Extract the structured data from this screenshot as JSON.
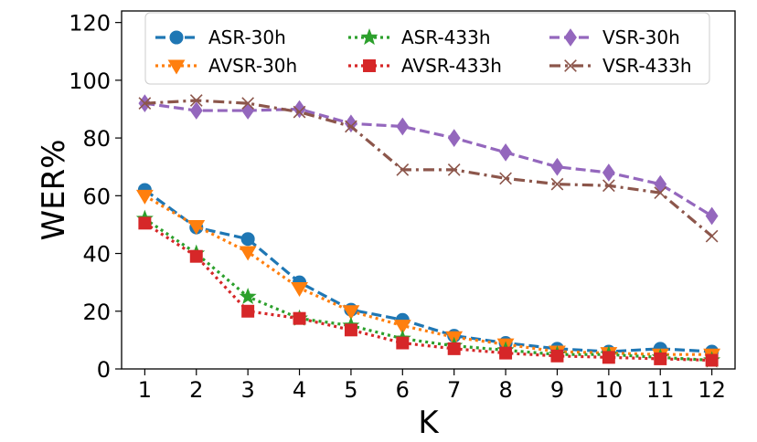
{
  "chart_data": {
    "type": "line",
    "xlabel": "K",
    "ylabel": "WER%",
    "x": [
      1,
      2,
      3,
      4,
      5,
      6,
      7,
      8,
      9,
      10,
      11,
      12
    ],
    "xlim": [
      0.55,
      12.45
    ],
    "ylim": [
      0,
      124
    ],
    "yticks": [
      0,
      20,
      40,
      60,
      80,
      100,
      120
    ],
    "grid": false,
    "legend_position": "top",
    "legend_columns": 3,
    "series": [
      {
        "name": "ASR-30h",
        "color": "#1f77b4",
        "marker": "circle",
        "linestyle": "dashed",
        "values": [
          62,
          49,
          45,
          30,
          20.5,
          17,
          11.5,
          9,
          7,
          6,
          7,
          6
        ]
      },
      {
        "name": "AVSR-30h",
        "color": "#ff7f0e",
        "marker": "triangle-down",
        "linestyle": "dotted",
        "values": [
          60,
          49.5,
          40.5,
          28,
          20,
          15,
          11,
          8.5,
          6,
          5.5,
          5,
          5
        ]
      },
      {
        "name": "ASR-433h",
        "color": "#2ca02c",
        "marker": "star",
        "linestyle": "dotted",
        "values": [
          52,
          40,
          25,
          17.5,
          15,
          10.5,
          8,
          6.5,
          5,
          5,
          4,
          3
        ]
      },
      {
        "name": "AVSR-433h",
        "color": "#d62728",
        "marker": "square",
        "linestyle": "dotted",
        "values": [
          50.5,
          39,
          20,
          17.5,
          13.5,
          9,
          7,
          5.5,
          4.5,
          4,
          3.5,
          3
        ]
      },
      {
        "name": "VSR-30h",
        "color": "#9467bd",
        "marker": "diamond",
        "linestyle": "dashed",
        "values": [
          92,
          89.5,
          89.5,
          90,
          85,
          84,
          80,
          75,
          70,
          68,
          64,
          53
        ]
      },
      {
        "name": "VSR-433h",
        "color": "#8c564b",
        "marker": "x",
        "linestyle": "dashdot",
        "values": [
          92,
          93,
          92,
          89,
          84,
          69,
          69,
          66,
          64,
          63.5,
          61,
          46
        ]
      }
    ]
  }
}
